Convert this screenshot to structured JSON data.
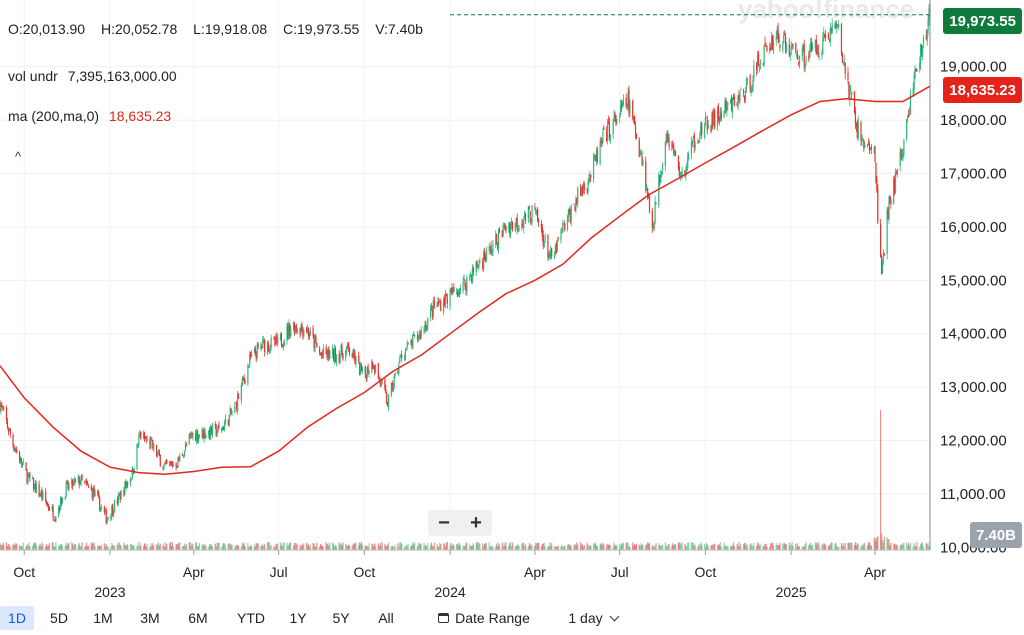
{
  "header": {
    "open": "O:20,013.90",
    "high": "H:20,052.78",
    "low": "L:19,918.08",
    "close": "C:19,973.55",
    "volume": "V:7.40b"
  },
  "indicators": [
    {
      "label": "vol undr",
      "value": "7,395,163,000.00"
    },
    {
      "label": "ma (200,ma,0)",
      "value": "18,635.23"
    }
  ],
  "watermark": "yahoo!finance",
  "zoom": {
    "minus": "−",
    "plus": "+"
  },
  "tags": {
    "last": "19,973.55",
    "ma": "18,635.23",
    "volume": "7.40B"
  },
  "toolbar": {
    "ranges": [
      "1D",
      "5D",
      "1M",
      "3M",
      "6M",
      "YTD",
      "1Y",
      "5Y",
      "All"
    ],
    "active": "1D",
    "date_range": "Date Range",
    "interval": "1 day"
  },
  "colors": {
    "up": "#2fb77c",
    "down": "#e5322d",
    "ma": "#e0281e",
    "last": "#0e7a3b"
  },
  "chart_data": {
    "type": "candlestick",
    "y_axis": {
      "ticks": [
        10000,
        11000,
        12000,
        13000,
        14000,
        15000,
        16000,
        17000,
        18000,
        19000
      ],
      "tick_labels": [
        "10,000.00",
        "11,000.00",
        "12,000.00",
        "13,000.00",
        "14,000.00",
        "15,000.00",
        "16,000.00",
        "17,000.00",
        "18,000.00",
        "19,000.00"
      ],
      "range": [
        9950,
        20250
      ],
      "position": "right"
    },
    "x_axis": {
      "range": [
        "2022-09-05",
        "2025-05-30"
      ],
      "ticks": [
        {
          "date": "2022-10-01",
          "label": "Oct",
          "year": false
        },
        {
          "date": "2023-01-01",
          "label": "2023",
          "year": true
        },
        {
          "date": "2023-04-01",
          "label": "Apr",
          "year": false
        },
        {
          "date": "2023-07-01",
          "label": "Jul",
          "year": false
        },
        {
          "date": "2023-10-01",
          "label": "Oct",
          "year": false
        },
        {
          "date": "2024-01-01",
          "label": "2024",
          "year": true
        },
        {
          "date": "2024-04-01",
          "label": "Apr",
          "year": false
        },
        {
          "date": "2024-07-01",
          "label": "Jul",
          "year": false
        },
        {
          "date": "2024-10-01",
          "label": "Oct",
          "year": false
        },
        {
          "date": "2025-01-01",
          "label": "2025",
          "year": true
        },
        {
          "date": "2025-04-01",
          "label": "Apr",
          "year": false
        }
      ]
    },
    "close_path": [
      [
        "2022-09-05",
        12700
      ],
      [
        "2022-09-20",
        11900
      ],
      [
        "2022-10-05",
        11300
      ],
      [
        "2022-10-20",
        10950
      ],
      [
        "2022-11-03",
        10600
      ],
      [
        "2022-11-15",
        11100
      ],
      [
        "2022-11-30",
        11250
      ],
      [
        "2022-12-15",
        11000
      ],
      [
        "2022-12-28",
        10550
      ],
      [
        "2023-01-10",
        10900
      ],
      [
        "2023-01-25",
        11400
      ],
      [
        "2023-02-02",
        12100
      ],
      [
        "2023-02-15",
        11900
      ],
      [
        "2023-03-01",
        11500
      ],
      [
        "2023-03-15",
        11600
      ],
      [
        "2023-03-30",
        12100
      ],
      [
        "2023-04-15",
        12150
      ],
      [
        "2023-04-30",
        12200
      ],
      [
        "2023-05-15",
        12600
      ],
      [
        "2023-05-31",
        13500
      ],
      [
        "2023-06-15",
        13800
      ],
      [
        "2023-06-30",
        13800
      ],
      [
        "2023-07-15",
        14150
      ],
      [
        "2023-07-31",
        14100
      ],
      [
        "2023-08-15",
        13600
      ],
      [
        "2023-08-31",
        13600
      ],
      [
        "2023-09-15",
        13700
      ],
      [
        "2023-09-30",
        13200
      ],
      [
        "2023-10-10",
        13500
      ],
      [
        "2023-10-26",
        12700
      ],
      [
        "2023-11-10",
        13600
      ],
      [
        "2023-11-30",
        14000
      ],
      [
        "2023-12-15",
        14500
      ],
      [
        "2023-12-31",
        14700
      ],
      [
        "2024-01-15",
        14900
      ],
      [
        "2024-01-31",
        15300
      ],
      [
        "2024-02-15",
        15600
      ],
      [
        "2024-02-29",
        16000
      ],
      [
        "2024-03-15",
        16100
      ],
      [
        "2024-03-31",
        16300
      ],
      [
        "2024-04-19",
        15350
      ],
      [
        "2024-04-30",
        15900
      ],
      [
        "2024-05-15",
        16500
      ],
      [
        "2024-05-31",
        17000
      ],
      [
        "2024-06-15",
        17700
      ],
      [
        "2024-07-10",
        18350
      ],
      [
        "2024-07-25",
        17300
      ],
      [
        "2024-08-05",
        16000
      ],
      [
        "2024-08-20",
        17800
      ],
      [
        "2024-09-06",
        16900
      ],
      [
        "2024-09-20",
        17700
      ],
      [
        "2024-10-10",
        18000
      ],
      [
        "2024-10-31",
        18300
      ],
      [
        "2024-11-15",
        18600
      ],
      [
        "2024-11-30",
        19200
      ],
      [
        "2024-12-16",
        19600
      ],
      [
        "2024-12-31",
        19300
      ],
      [
        "2025-01-15",
        19200
      ],
      [
        "2025-01-31",
        19400
      ],
      [
        "2025-02-19",
        19800
      ],
      [
        "2025-03-01",
        18800
      ],
      [
        "2025-03-15",
        17700
      ],
      [
        "2025-03-31",
        17400
      ],
      [
        "2025-04-08",
        15100
      ],
      [
        "2025-04-15",
        16300
      ],
      [
        "2025-04-30",
        17400
      ],
      [
        "2025-05-12",
        18700
      ],
      [
        "2025-05-20",
        19250
      ],
      [
        "2025-05-30",
        19974
      ]
    ],
    "ma200_path": [
      [
        "2022-09-05",
        13400
      ],
      [
        "2022-10-01",
        12800
      ],
      [
        "2022-11-01",
        12250
      ],
      [
        "2022-12-01",
        11800
      ],
      [
        "2023-01-01",
        11500
      ],
      [
        "2023-02-01",
        11400
      ],
      [
        "2023-03-01",
        11370
      ],
      [
        "2023-04-01",
        11420
      ],
      [
        "2023-05-01",
        11500
      ],
      [
        "2023-06-01",
        11510
      ],
      [
        "2023-07-01",
        11800
      ],
      [
        "2023-08-01",
        12250
      ],
      [
        "2023-09-01",
        12600
      ],
      [
        "2023-10-01",
        12900
      ],
      [
        "2023-11-01",
        13300
      ],
      [
        "2023-12-01",
        13600
      ],
      [
        "2024-01-01",
        14000
      ],
      [
        "2024-02-01",
        14400
      ],
      [
        "2024-03-01",
        14750
      ],
      [
        "2024-04-01",
        15000
      ],
      [
        "2024-05-01",
        15300
      ],
      [
        "2024-06-01",
        15800
      ],
      [
        "2024-07-01",
        16200
      ],
      [
        "2024-08-01",
        16600
      ],
      [
        "2024-09-01",
        16900
      ],
      [
        "2024-10-01",
        17200
      ],
      [
        "2024-11-01",
        17500
      ],
      [
        "2024-12-01",
        17800
      ],
      [
        "2025-01-01",
        18100
      ],
      [
        "2025-02-01",
        18350
      ],
      [
        "2025-03-01",
        18400
      ],
      [
        "2025-04-01",
        18350
      ],
      [
        "2025-05-01",
        18350
      ],
      [
        "2025-05-30",
        18635
      ]
    ],
    "last_close": 19973.55,
    "ma_last": 18635.23,
    "volume_spike": {
      "date": "2025-04-07",
      "label": "7.40B"
    },
    "grid": true,
    "legend": "top-left"
  }
}
